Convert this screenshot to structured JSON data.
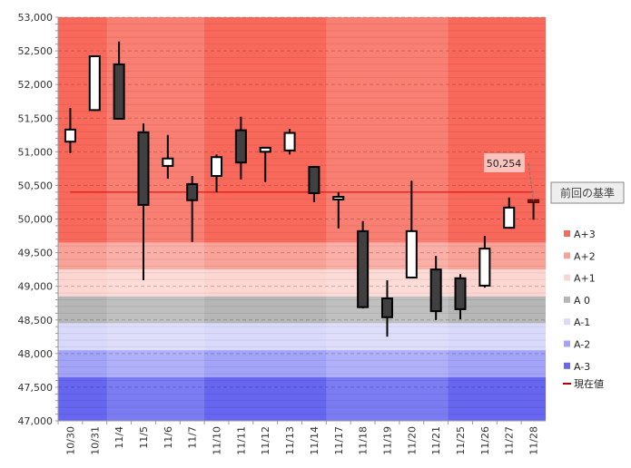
{
  "chart_data": {
    "type": "candlestick",
    "categories": [
      "10/30",
      "10/31",
      "11/4",
      "11/5",
      "11/6",
      "11/7",
      "11/10",
      "11/11",
      "11/12",
      "11/13",
      "11/14",
      "11/17",
      "11/18",
      "11/19",
      "11/20",
      "11/21",
      "11/25",
      "11/26",
      "11/27",
      "11/28"
    ],
    "ohlc": [
      [
        51150,
        51330,
        51650,
        50980
      ],
      [
        51620,
        52420,
        52420,
        51620
      ],
      [
        52300,
        51490,
        52640,
        51490
      ],
      [
        51290,
        50210,
        51420,
        49090
      ],
      [
        50790,
        50900,
        51250,
        50600
      ],
      [
        50520,
        50280,
        50640,
        49660
      ],
      [
        50640,
        50920,
        50960,
        50400
      ],
      [
        51320,
        50840,
        51520,
        50590
      ],
      [
        51000,
        51060,
        51060,
        50550
      ],
      [
        51020,
        51280,
        51340,
        50960
      ],
      [
        50775,
        50385,
        50775,
        50250
      ],
      [
        50290,
        50330,
        50400,
        49860
      ],
      [
        49820,
        48690,
        49970,
        48670
      ],
      [
        48820,
        48540,
        49090,
        48250
      ],
      [
        49130,
        49820,
        50570,
        49130
      ],
      [
        49250,
        48630,
        49450,
        48500
      ],
      [
        49120,
        48660,
        49180,
        48510
      ],
      [
        49010,
        49560,
        49750,
        48980
      ],
      [
        49870,
        50170,
        50320,
        49870
      ],
      [
        50280,
        50254,
        50290,
        49990
      ]
    ],
    "ylim": [
      47000,
      53000
    ],
    "yticks": [
      "47,000",
      "47,500",
      "48,000",
      "48,500",
      "49,000",
      "49,500",
      "50,000",
      "50,500",
      "51,000",
      "51,500",
      "52,000",
      "52,500",
      "53,000"
    ],
    "grid": true,
    "bands": [
      {
        "name": "A+3",
        "from": 49650,
        "to": 53000,
        "color": "#f8695b"
      },
      {
        "name": "A+2",
        "from": 49250,
        "to": 49650,
        "color": "#f9a298"
      },
      {
        "name": "A+1",
        "from": 48850,
        "to": 49250,
        "color": "#fdd5d1"
      },
      {
        "name": "A 0",
        "from": 48450,
        "to": 48850,
        "color": "#b6b6b6"
      },
      {
        "name": "A-1",
        "from": 48050,
        "to": 48450,
        "color": "#d9d9fb"
      },
      {
        "name": "A-2",
        "from": 47650,
        "to": 48050,
        "color": "#a3a3f8"
      },
      {
        "name": "A-3",
        "from": 47000,
        "to": 47650,
        "color": "#6666f0"
      }
    ],
    "legend_current": "現在値",
    "current_color": "#b00000",
    "reference": {
      "value": 50400,
      "label": "前回の基準",
      "color": "#e00000"
    },
    "callout": "50,254",
    "legend_position": "right"
  }
}
